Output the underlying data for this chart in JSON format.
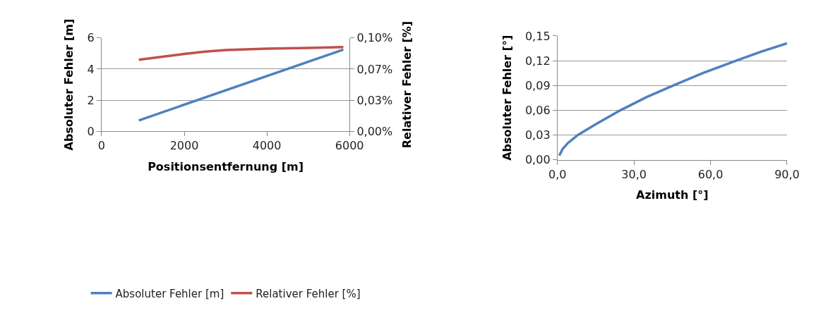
{
  "chart_data": [
    {
      "type": "line",
      "xlabel": "Positionsentfernung [m]",
      "ylabel": "Absoluter Fehler [m]",
      "y2label": "Relativer Fehler [%]",
      "xlim": [
        0,
        6000
      ],
      "xticks": [
        0,
        2000,
        4000,
        6000
      ],
      "ylim": [
        0,
        6
      ],
      "yticks": [
        0,
        2,
        4,
        6
      ],
      "y2lim": [
        0,
        0.1
      ],
      "y2ticks": [
        {
          "value": 0,
          "label": "0,00%"
        },
        {
          "value": 0.0333,
          "label": "0,03%"
        },
        {
          "value": 0.0667,
          "label": "0,07%"
        },
        {
          "value": 0.1,
          "label": "0,10%"
        }
      ],
      "grid": "y",
      "legend": "bottom",
      "marker": "none",
      "line_style": "solid",
      "series": [
        {
          "name": "Absoluter Fehler [m]",
          "color": "#4f81bd",
          "x": [
            900,
            5850
          ],
          "values": [
            0.7,
            5.25
          ]
        },
        {
          "name": "Relativer Fehler [%]",
          "color": "#c0504d",
          "axis": "y2",
          "x": [
            900,
            1500,
            2000,
            2500,
            3000,
            3500,
            4000,
            5000,
            5850
          ],
          "values": [
            0.0767,
            0.08,
            0.0828,
            0.0853,
            0.087,
            0.0878,
            0.0885,
            0.0893,
            0.0903
          ]
        }
      ]
    },
    {
      "type": "line",
      "xlabel": "Azimuth [°]",
      "ylabel": "Absoluter Fehler [°]",
      "xlim": [
        0,
        90
      ],
      "xticks": [
        {
          "value": 0,
          "label": "0,0"
        },
        {
          "value": 30,
          "label": "30,0"
        },
        {
          "value": 60,
          "label": "60,0"
        },
        {
          "value": 90,
          "label": "90,0"
        }
      ],
      "ylim": [
        0,
        0.15
      ],
      "yticks": [
        {
          "value": 0,
          "label": "0,00"
        },
        {
          "value": 0.03,
          "label": "0,03"
        },
        {
          "value": 0.06,
          "label": "0,06"
        },
        {
          "value": 0.09,
          "label": "0,09"
        },
        {
          "value": 0.12,
          "label": "0,12"
        },
        {
          "value": 0.15,
          "label": "0,15"
        }
      ],
      "grid": "y",
      "legend": false,
      "marker": "none",
      "line_style": "solid",
      "series": [
        {
          "color": "#4f81bd",
          "x": [
            0.7,
            2,
            4,
            8,
            15,
            24.7,
            35,
            45.5,
            57,
            70,
            80,
            90
          ],
          "values": [
            0.005,
            0.013,
            0.02,
            0.03,
            0.043,
            0.06,
            0.076,
            0.09,
            0.105,
            0.12,
            0.131,
            0.141
          ]
        }
      ]
    }
  ]
}
